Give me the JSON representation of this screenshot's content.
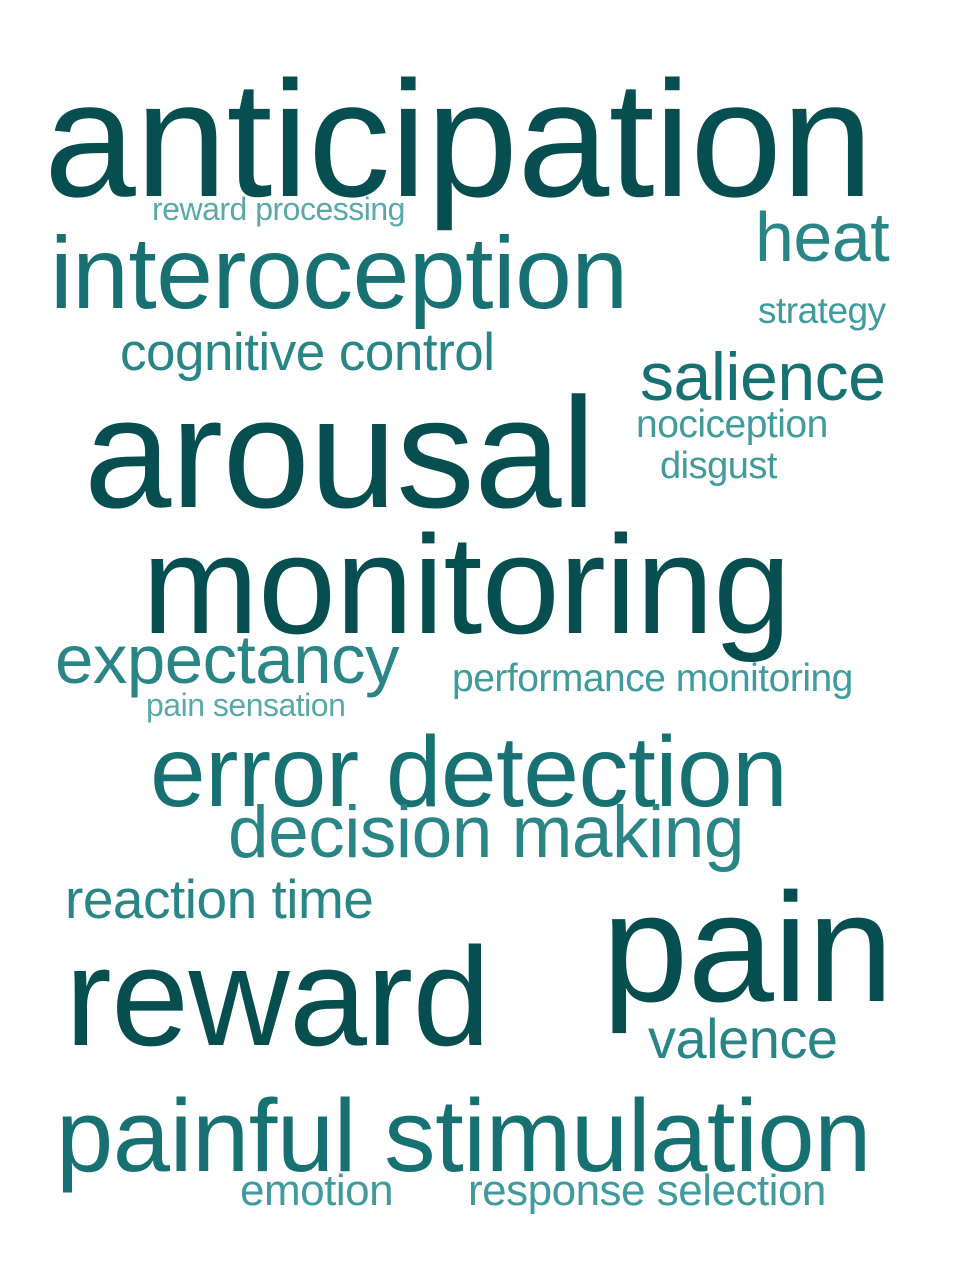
{
  "words": {
    "anticipation": "anticipation",
    "reward_processing": "reward processing",
    "heat": "heat",
    "interoception": "interoception",
    "strategy": "strategy",
    "cognitive_control": "cognitive control",
    "salience": "salience",
    "arousal": "arousal",
    "nociception": "nociception",
    "disgust": "disgust",
    "monitoring": "monitoring",
    "expectancy": "expectancy",
    "performance_monitoring": "performance monitoring",
    "pain_sensation": "pain sensation",
    "error_detection": "error detection",
    "decision_making": "decision making",
    "reaction_time": "reaction time",
    "pain": "pain",
    "reward": "reward",
    "valence": "valence",
    "painful_stimulation": "painful stimulation",
    "emotion": "emotion",
    "response_selection": "response selection"
  },
  "colors": {
    "darkest": "#064e50",
    "dark": "#177172",
    "medium": "#2a8586",
    "light": "#419a9b",
    "lightest": "#5aa9aa",
    "background": "#ffffff"
  }
}
